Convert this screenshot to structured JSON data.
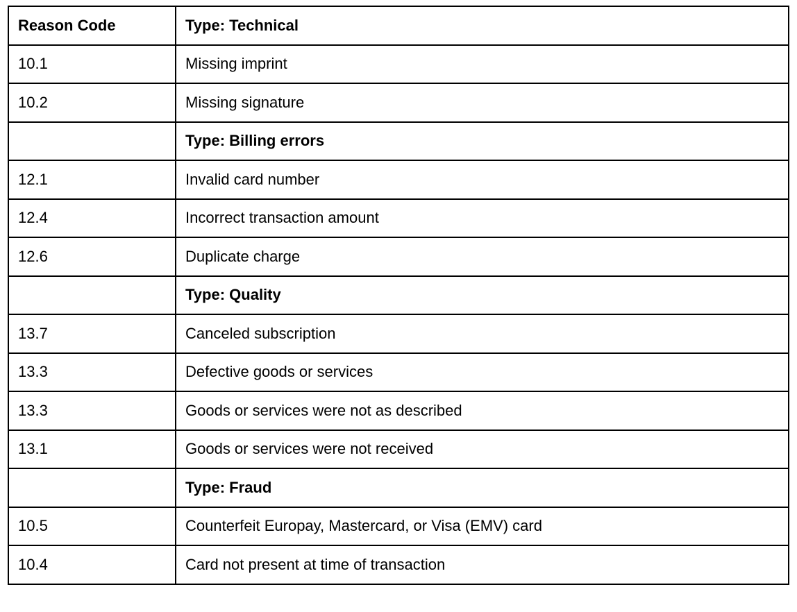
{
  "table": {
    "headers": [
      "Reason Code",
      "Type: Technical"
    ],
    "rows": [
      {
        "code": "10.1",
        "description": "Missing imprint",
        "bold": false
      },
      {
        "code": "10.2",
        "description": "Missing signature",
        "bold": false
      },
      {
        "code": "",
        "description": "Type: Billing errors",
        "bold": true
      },
      {
        "code": "12.1",
        "description": "Invalid card number",
        "bold": false
      },
      {
        "code": "12.4",
        "description": "Incorrect transaction amount",
        "bold": false
      },
      {
        "code": "12.6",
        "description": "Duplicate charge",
        "bold": false
      },
      {
        "code": "",
        "description": "Type: Quality",
        "bold": true
      },
      {
        "code": "13.7",
        "description": "Canceled subscription",
        "bold": false
      },
      {
        "code": "13.3",
        "description": "Defective goods or services",
        "bold": false
      },
      {
        "code": "13.3",
        "description": "Goods or services were not as described",
        "bold": false
      },
      {
        "code": "13.1",
        "description": "Goods or services were not received",
        "bold": false
      },
      {
        "code": "",
        "description": "Type: Fraud",
        "bold": true
      },
      {
        "code": "10.5",
        "description": "Counterfeit Europay, Mastercard, or Visa (EMV) card",
        "bold": false
      },
      {
        "code": "10.4",
        "description": "Card not present at time of transaction",
        "bold": false
      }
    ]
  }
}
